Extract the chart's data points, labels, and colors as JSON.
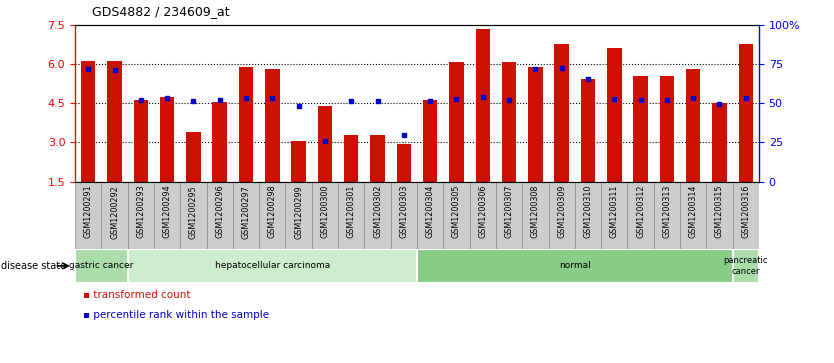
{
  "title": "GDS4882 / 234609_at",
  "samples": [
    "GSM1200291",
    "GSM1200292",
    "GSM1200293",
    "GSM1200294",
    "GSM1200295",
    "GSM1200296",
    "GSM1200297",
    "GSM1200298",
    "GSM1200299",
    "GSM1200300",
    "GSM1200301",
    "GSM1200302",
    "GSM1200303",
    "GSM1200304",
    "GSM1200305",
    "GSM1200306",
    "GSM1200307",
    "GSM1200308",
    "GSM1200309",
    "GSM1200310",
    "GSM1200311",
    "GSM1200312",
    "GSM1200313",
    "GSM1200314",
    "GSM1200315",
    "GSM1200316"
  ],
  "red_bar_values": [
    6.12,
    6.12,
    4.65,
    4.75,
    3.4,
    4.55,
    5.9,
    5.82,
    3.05,
    4.4,
    3.27,
    3.27,
    2.93,
    4.65,
    6.1,
    7.38,
    6.1,
    5.9,
    6.78,
    5.45,
    6.65,
    5.55,
    5.57,
    5.82,
    4.5,
    6.8
  ],
  "blue_dot_values": [
    5.82,
    5.78,
    4.62,
    4.72,
    4.6,
    4.65,
    4.72,
    4.72,
    4.4,
    3.05,
    4.58,
    4.58,
    3.28,
    4.6,
    4.68,
    4.75,
    4.65,
    5.82,
    5.88,
    5.45,
    4.67,
    4.63,
    4.65,
    4.72,
    4.48,
    4.72
  ],
  "ylim_left": [
    1.5,
    7.5
  ],
  "yticks_left": [
    1.5,
    3.0,
    4.5,
    6.0,
    7.5
  ],
  "ylim_right": [
    0,
    100
  ],
  "yticks_right": [
    0,
    25,
    50,
    75,
    100
  ],
  "ytick_labels_right": [
    "0",
    "25",
    "50",
    "75",
    "100%"
  ],
  "bar_color": "#cc1100",
  "dot_color": "#0000cc",
  "bar_bottom": 1.5,
  "tick_bg_color": "#cccccc",
  "tick_border_color": "#999999",
  "disease_groups": [
    {
      "label": "gastric cancer",
      "start": 0,
      "end": 2,
      "color": "#aaddaa"
    },
    {
      "label": "hepatocellular carcinoma",
      "start": 2,
      "end": 13,
      "color": "#cceecc"
    },
    {
      "label": "normal",
      "start": 13,
      "end": 25,
      "color": "#88cc88"
    },
    {
      "label": "pancreatic\ncancer",
      "start": 25,
      "end": 26,
      "color": "#aaddaa"
    }
  ],
  "legend_red_label": "transformed count",
  "legend_blue_label": "percentile rank within the sample",
  "disease_state_label": "disease state",
  "xticklabel_fontsize": 5.8,
  "yticklabel_fontsize": 8,
  "title_fontsize": 9
}
